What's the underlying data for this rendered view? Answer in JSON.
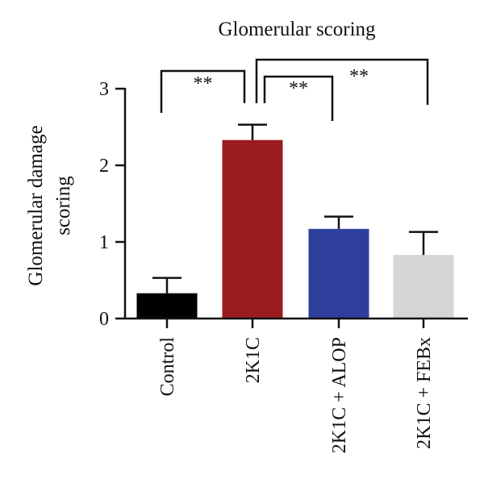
{
  "chart_data": {
    "type": "bar",
    "title": "Glomerular scoring",
    "ylabel": [
      "Glomerular damage",
      "scoring"
    ],
    "xlabel": "",
    "categories": [
      "Control",
      "2K1C",
      "2K1C + ALOP",
      "2K1C + FEBx"
    ],
    "values": [
      0.33,
      2.33,
      1.17,
      0.83
    ],
    "errors": [
      0.2,
      0.2,
      0.16,
      0.3
    ],
    "colors": [
      "#000000",
      "#9b1c20",
      "#2e3f9b",
      "#d5d5d5"
    ],
    "ylim": [
      0,
      3
    ],
    "yticks": [
      "0",
      "1",
      "2",
      "3"
    ],
    "grid": false,
    "legend": "none",
    "significance": [
      {
        "from": 0,
        "to": 1,
        "label": "**"
      },
      {
        "from": 1,
        "to": 2,
        "label": "**"
      },
      {
        "from": 1,
        "to": 3,
        "label": "**"
      }
    ]
  }
}
